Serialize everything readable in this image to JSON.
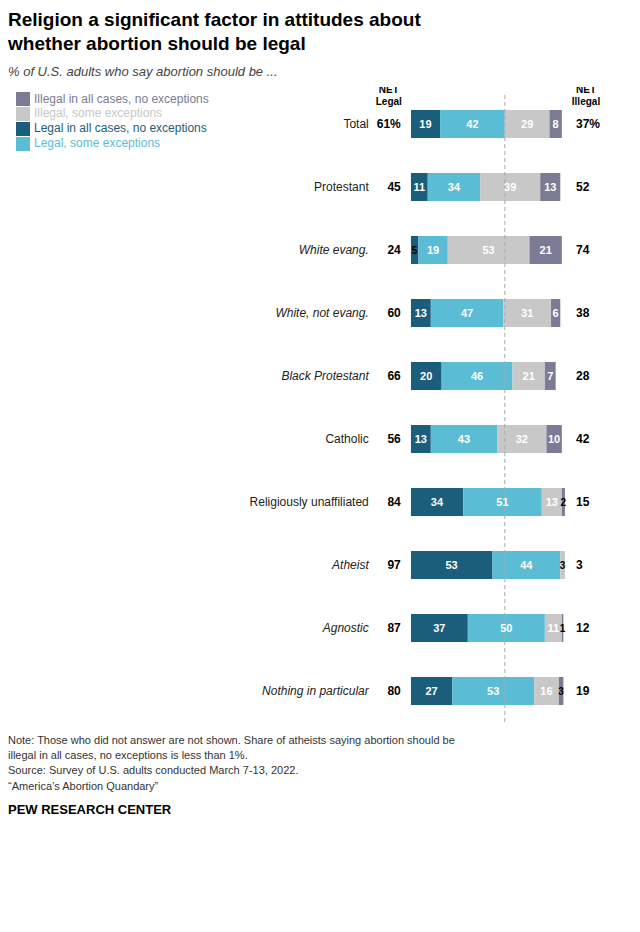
{
  "chart_data": {
    "type": "bar",
    "orientation": "horizontal",
    "stacked": true,
    "data_labels": true,
    "tick_labels": false,
    "grid": false,
    "legend": "top",
    "title": "Religion a significant factor in attitudes about\nwhether abortion should be legal",
    "subtitle": "% of U.S. adults who say abortion should be ...",
    "categories": [
      "Total",
      "Protestant",
      "White evang.",
      "White, not evang.",
      "Black Protestant",
      "Catholic",
      "Religiously unaffiliated",
      "Atheist",
      "Agnostic",
      "Nothing in particular"
    ],
    "series": [
      {
        "name": "Legal in all cases, no exceptions",
        "color": "#1b5e7b",
        "values": [
          19,
          11,
          5,
          13,
          20,
          13,
          34,
          53,
          37,
          27
        ]
      },
      {
        "name": "Legal, some exceptions",
        "color": "#5bbcd6",
        "values": [
          42,
          34,
          19,
          47,
          46,
          43,
          51,
          44,
          50,
          53
        ]
      },
      {
        "name": "Illegal, some exceptions",
        "color": "#c8c8c8",
        "values": [
          29,
          39,
          53,
          31,
          21,
          32,
          13,
          3,
          11,
          16
        ]
      },
      {
        "name": "Illegal in all cases, no exceptions",
        "color": "#7b7b96",
        "values": [
          8,
          13,
          21,
          6,
          7,
          10,
          2,
          0,
          1,
          3
        ]
      }
    ],
    "xlim": [
      0,
      102
    ],
    "divider": 61,
    "net_legal": {
      "title": "NET\nLegal",
      "values": [
        61,
        45,
        24,
        60,
        66,
        56,
        84,
        97,
        87,
        80
      ],
      "value_labels": [
        "61%",
        "45",
        "24",
        "60",
        "66",
        "56",
        "84",
        "97",
        "87",
        "80"
      ]
    },
    "net_illegal": {
      "title": "NET\nIllegal",
      "values": [
        37,
        52,
        74,
        38,
        28,
        42,
        15,
        3,
        12,
        19
      ],
      "value_labels": [
        "37%",
        "52",
        "74",
        "38",
        "28",
        "42",
        "15",
        "3",
        "12",
        "19"
      ]
    },
    "note": "Note: Those who did not answer are not shown. Share of atheists saying abortion should be\nillegal in all cases, no exceptions is less than 1%.\nSource: Survey of U.S. adults conducted March 7-13, 2022.\n“America’s Abortion Quandary”",
    "footer": "PEW RESEARCH CENTER"
  }
}
